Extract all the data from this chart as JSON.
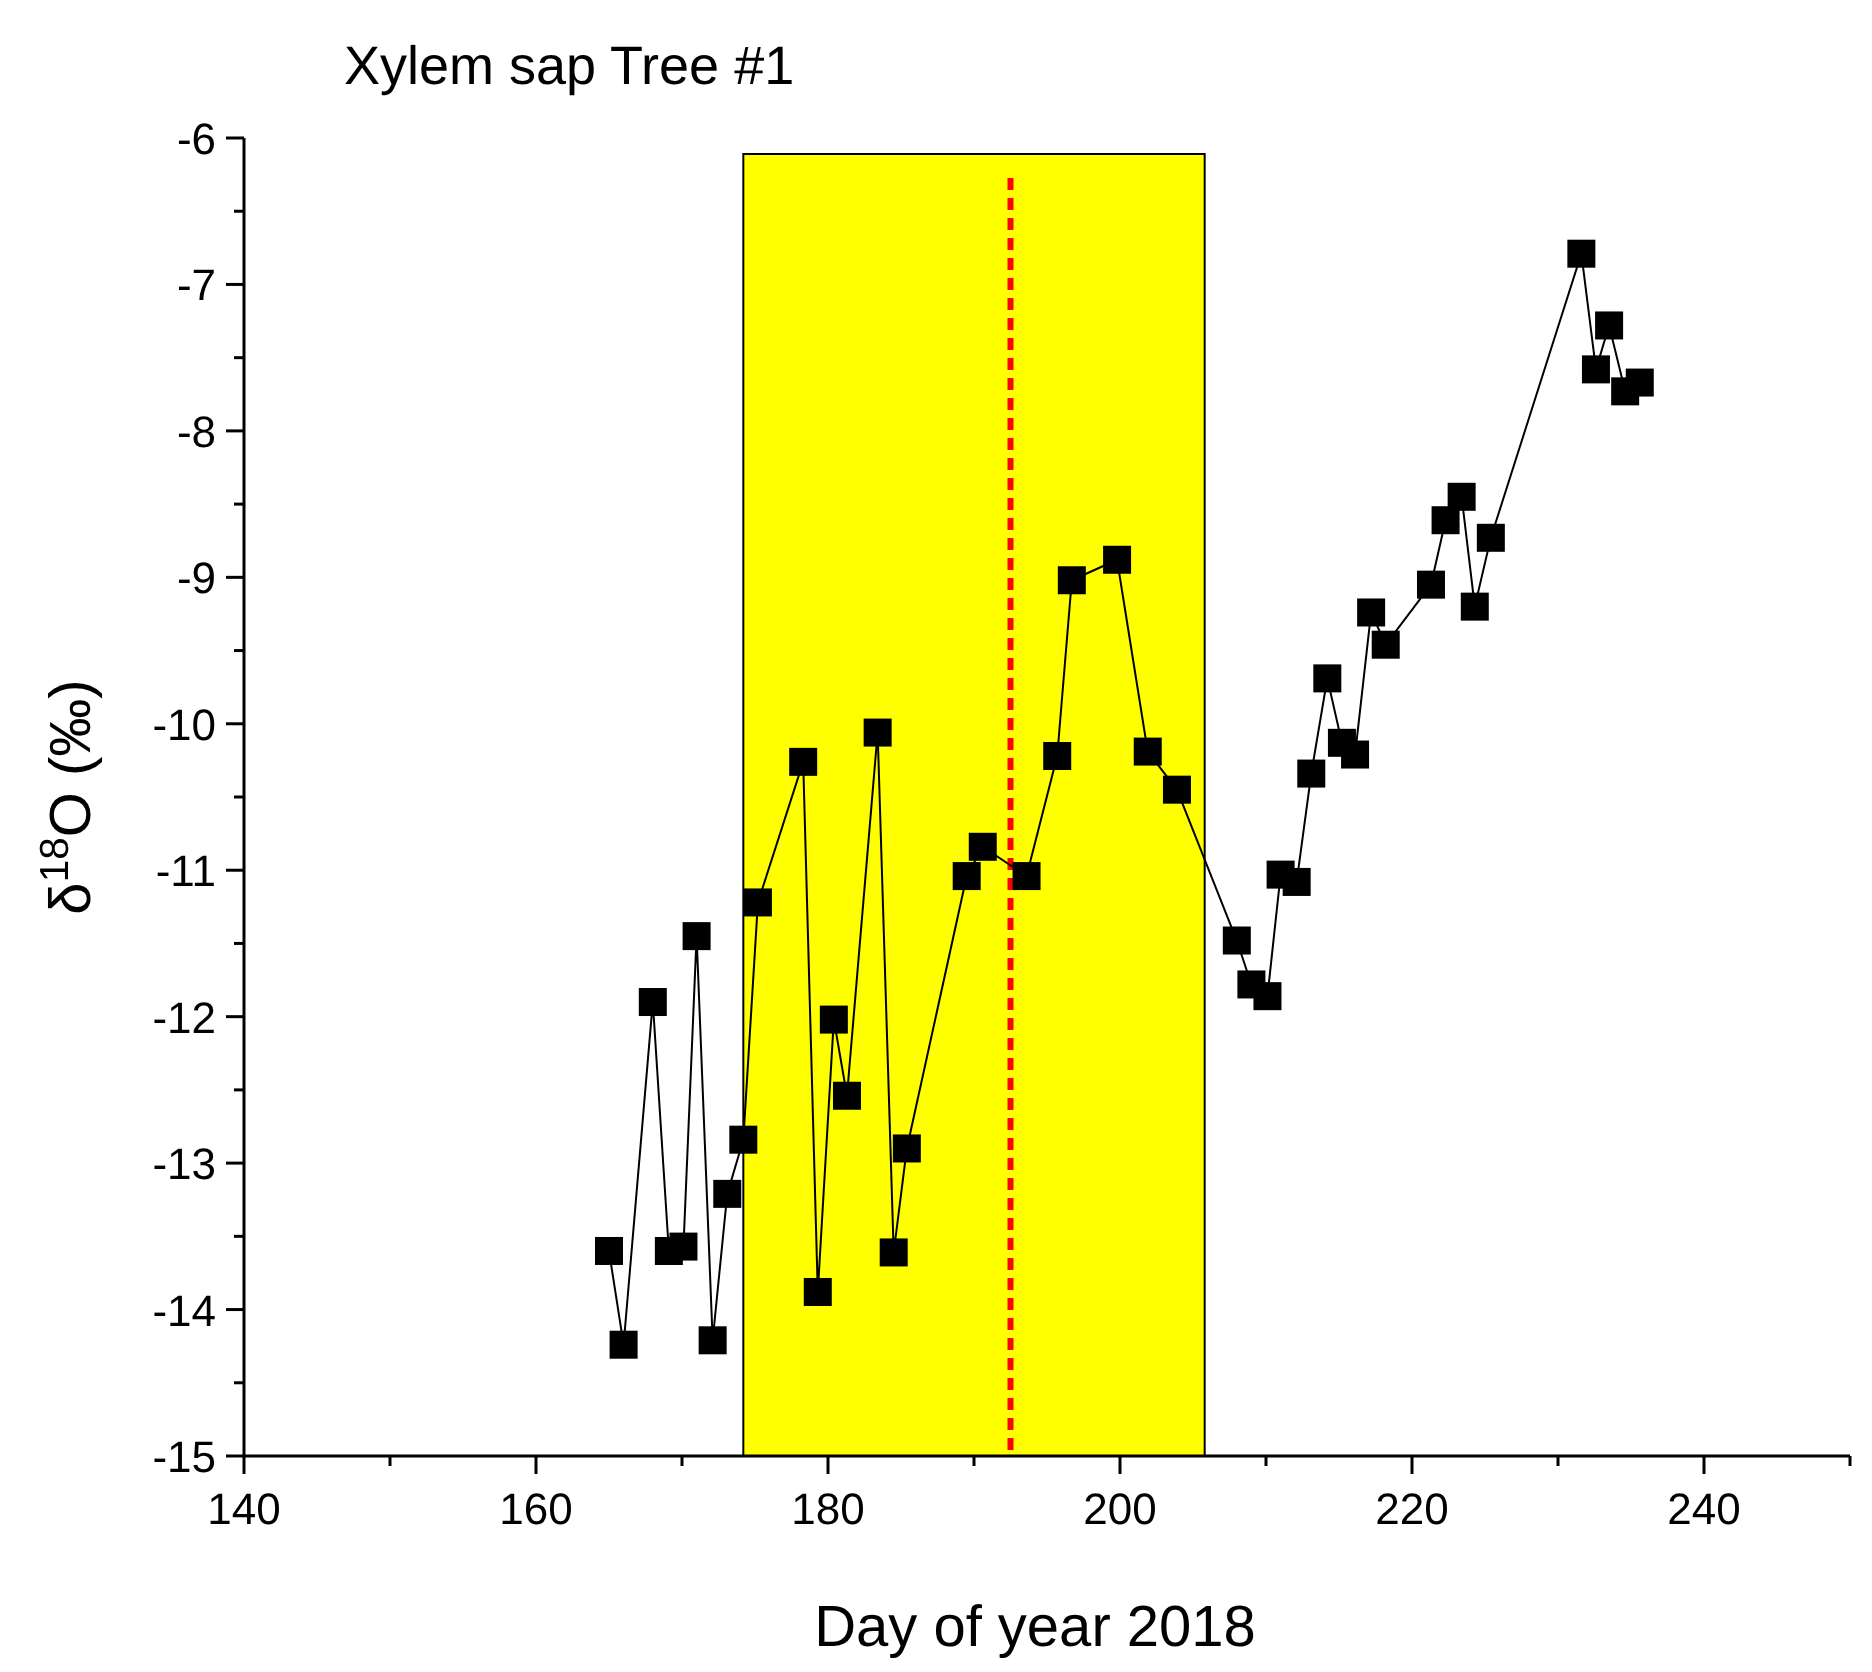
{
  "chart_data": {
    "type": "line",
    "title": "Xylem sap Tree #1",
    "xlabel": "Day of year 2018",
    "ylabel": "δ$^{18}$O (‰)",
    "x": [
      165.0,
      166.0,
      168.0,
      169.1,
      170.1,
      171.0,
      172.1,
      173.1,
      174.2,
      175.2,
      178.3,
      179.3,
      180.4,
      181.3,
      183.4,
      184.5,
      185.4,
      189.5,
      190.6,
      193.6,
      195.7,
      196.7,
      199.8,
      201.9,
      203.9,
      208.0,
      209.0,
      210.1,
      211.0,
      212.1,
      213.1,
      214.2,
      215.2,
      216.1,
      217.2,
      218.2,
      221.3,
      222.3,
      223.4,
      224.3,
      225.4,
      231.6,
      232.6,
      233.5,
      234.6,
      235.6
    ],
    "series": [
      {
        "color": "#000000",
        "values": [
          -13.6,
          -14.24,
          -11.9,
          -13.6,
          -13.57,
          -11.45,
          -14.21,
          -13.21,
          -12.84,
          -11.22,
          -10.26,
          -13.88,
          -12.02,
          -12.54,
          -10.06,
          -13.61,
          -12.9,
          -11.04,
          -10.84,
          -11.04,
          -10.22,
          -9.02,
          -8.88,
          -10.19,
          -10.45,
          -11.48,
          -11.78,
          -11.86,
          -11.03,
          -11.08,
          -10.34,
          -9.69,
          -10.13,
          -10.21,
          -9.24,
          -9.46,
          -9.05,
          -8.61,
          -8.45,
          -9.2,
          -8.73,
          -6.79,
          -7.58,
          -7.28,
          -7.73,
          -7.67
        ]
      }
    ],
    "marker": "square",
    "line_style": "solid",
    "grid": false,
    "xlim": [
      140,
      250
    ],
    "xticks": [
      140,
      {
        "value": 150,
        "label": null
      },
      160,
      {
        "value": 170,
        "label": null
      },
      180,
      {
        "value": 190,
        "label": null
      },
      200,
      {
        "value": 210,
        "label": null
      },
      220,
      {
        "value": 230,
        "label": null
      },
      240,
      {
        "value": 250,
        "label": null
      }
    ],
    "ylim": [
      -15,
      -6
    ],
    "yticks": [
      -15,
      {
        "value": -14.5,
        "label": null
      },
      -14,
      {
        "value": -13.5,
        "label": null
      },
      -13,
      {
        "value": -12.5,
        "label": null
      },
      -12,
      {
        "value": -11.5,
        "label": null
      },
      -11,
      {
        "value": -10.5,
        "label": null
      },
      -10,
      {
        "value": -9.5,
        "label": null
      },
      -9,
      {
        "value": -8.5,
        "label": null
      },
      -8,
      {
        "value": -7.5,
        "label": null
      },
      -7,
      {
        "value": -6.5,
        "label": null
      },
      -6
    ],
    "bands": [
      {
        "axis": "x",
        "from": 174.2,
        "to": 205.8,
        "color": "#ffff00"
      }
    ],
    "ref_lines": [
      {
        "axis": "x",
        "value": 192.5,
        "color": "#ff0000",
        "line_style": "dashed"
      }
    ]
  }
}
